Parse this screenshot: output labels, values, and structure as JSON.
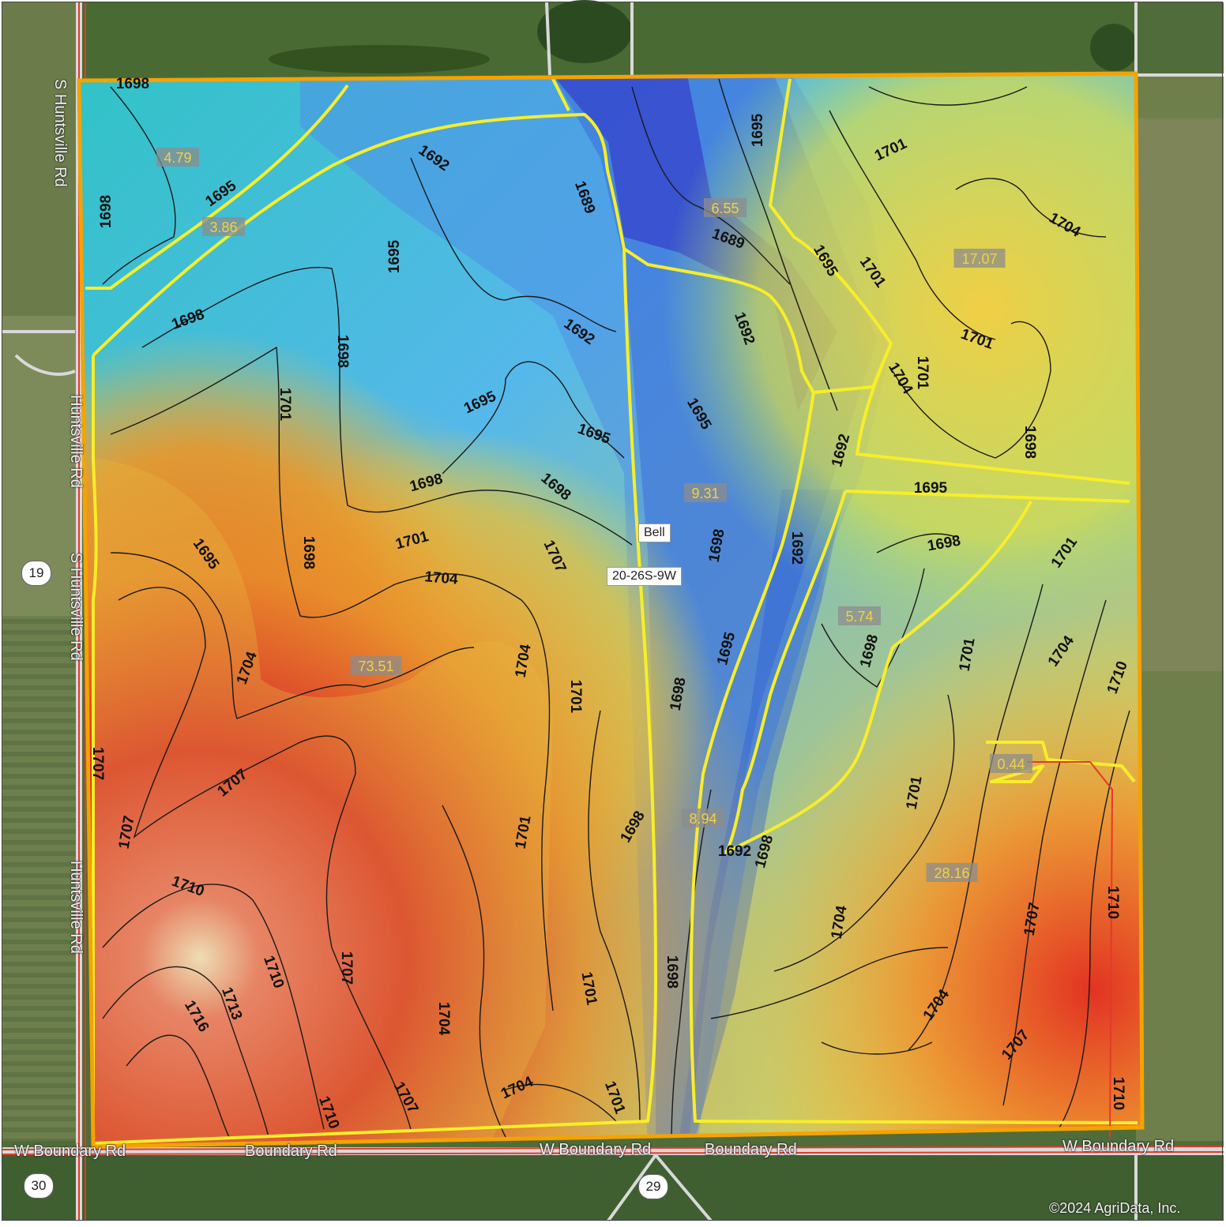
{
  "map": {
    "section_label": "20-26S-9W",
    "town_label": "Bell",
    "copyright": "©2024 AgriData, Inc.",
    "colors": {
      "boundary": "#f5a300",
      "zone_line": "#f7ee2a",
      "road": "#e23a2a",
      "contour": "#1a1a1a",
      "zone_label_bg": "#8c8c8c",
      "zone_label_text": "#f0d24a"
    },
    "roads": [
      {
        "label": "S Huntsville Rd"
      },
      {
        "label": "Huntsville Rd"
      },
      {
        "label": "S Huntsville Rd"
      },
      {
        "label": "Huntsville Rd"
      },
      {
        "label": "W Boundary Rd"
      },
      {
        "label": "Boundary Rd"
      },
      {
        "label": "W Boundary Rd"
      },
      {
        "label": "Boundary Rd"
      },
      {
        "label": "W Boundary Rd"
      }
    ],
    "section_numbers": [
      "19",
      "30",
      "29"
    ],
    "zone_labels": [
      {
        "value": "4.79"
      },
      {
        "value": "3.86"
      },
      {
        "value": "6.55"
      },
      {
        "value": "17.07"
      },
      {
        "value": "9.31"
      },
      {
        "value": "5.74"
      },
      {
        "value": "73.51"
      },
      {
        "value": "0.44"
      },
      {
        "value": "8.94"
      },
      {
        "value": "28.16"
      }
    ],
    "contour_labels": [
      "1698",
      "1695",
      "1698",
      "1698",
      "1692",
      "1689",
      "1695",
      "1692",
      "1695",
      "1689",
      "1695",
      "1701",
      "1704",
      "1701",
      "1701",
      "1692",
      "1698",
      "1701",
      "1698",
      "1698",
      "1695",
      "1695",
      "1698",
      "1701",
      "1704",
      "1698",
      "1698",
      "1695",
      "1695",
      "1692",
      "1692",
      "1698",
      "1695",
      "1701",
      "1704",
      "1707",
      "1704",
      "1701",
      "1704",
      "1701",
      "1698",
      "1695",
      "1692",
      "1698",
      "1704",
      "1710",
      "1707",
      "1701",
      "1704",
      "1701",
      "1698",
      "1701",
      "1704",
      "1707",
      "1710",
      "1710",
      "1713",
      "1716",
      "1707",
      "1704",
      "1701",
      "1707",
      "1698",
      "1698",
      "1701",
      "1704",
      "1707",
      "1707",
      "1710",
      "1710",
      "1710",
      "1707",
      "1701",
      "1707",
      "1704"
    ]
  }
}
